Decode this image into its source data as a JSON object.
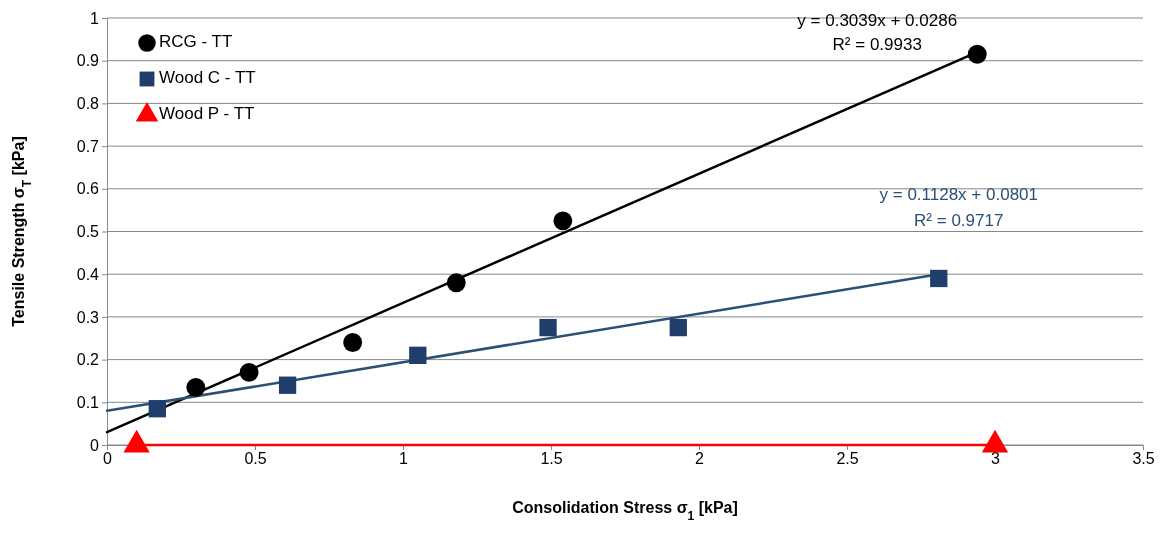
{
  "chart_data": {
    "type": "scatter",
    "xlabel": "Consolidation Stress σ$_{1}$ [kPa]",
    "ylabel": "Tensile Strength σ$_{T}$ [kPa]",
    "xlim": [
      0,
      3.5
    ],
    "xticks": [
      0,
      0.5,
      1,
      1.5,
      2,
      2.5,
      3,
      3.5
    ],
    "ylim": [
      0,
      1
    ],
    "yticks": [
      0,
      0.1,
      0.2,
      0.3,
      0.4,
      0.5,
      0.6,
      0.7,
      0.8,
      0.9,
      1
    ],
    "grid": "y",
    "legend": "top left",
    "series": [
      {
        "name": "RCG - TT",
        "marker": "circle",
        "color": "#000000",
        "x": [
          0.3,
          0.48,
          0.83,
          1.18,
          1.54,
          2.94
        ],
        "values": [
          0.135,
          0.17,
          0.24,
          0.38,
          0.525,
          0.915
        ]
      },
      {
        "name": "Wood C - TT",
        "marker": "square",
        "color": "#1f3f6a",
        "x": [
          0.17,
          0.61,
          1.05,
          1.49,
          1.93,
          2.81
        ],
        "values": [
          0.085,
          0.14,
          0.21,
          0.275,
          0.275,
          0.39
        ]
      },
      {
        "name": "Wood P - TT",
        "type": "line",
        "marker": "triangle",
        "color": "#ff0000",
        "x": [
          0.1,
          3.0
        ],
        "values": [
          0,
          0
        ]
      },
      {
        "type": "line",
        "marker": "none",
        "color": "#000000",
        "x": [
          0,
          2.94
        ],
        "values": [
          0.03,
          0.92
        ]
      },
      {
        "type": "line",
        "marker": "none",
        "color": "#2a5078",
        "x": [
          0,
          2.81
        ],
        "values": [
          0.08,
          0.4
        ]
      }
    ],
    "annotations": [
      "y = 0.3039x + 0.0286",
      "R² = 0.9933",
      "y = 0.1128x + 0.0801",
      "R² = 0.9717"
    ]
  }
}
